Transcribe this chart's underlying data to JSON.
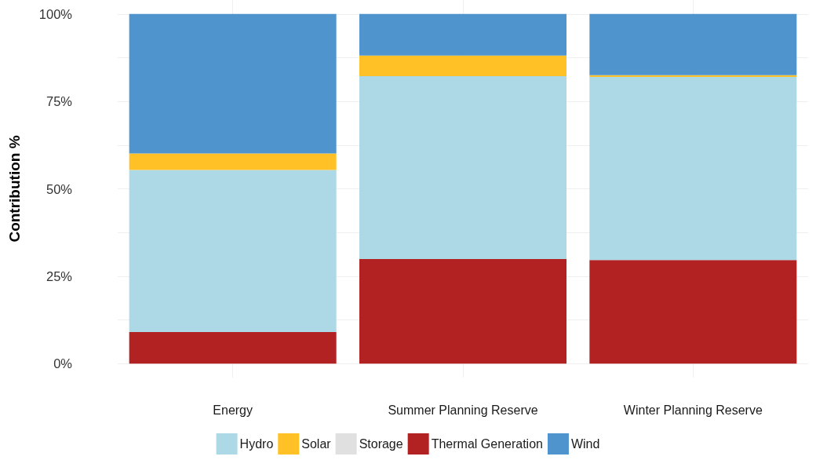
{
  "chart_data": {
    "type": "bar",
    "stacked": true,
    "ylabel": "Contribution %",
    "categories": [
      "Energy",
      "Summer Planning Reserve",
      "Winter Planning Reserve"
    ],
    "series": [
      {
        "name": "Thermal Generation",
        "color": "#b22222",
        "values": [
          9.0,
          29.9,
          29.6
        ]
      },
      {
        "name": "Hydro",
        "color": "#add8e6",
        "values": [
          46.4,
          52.3,
          52.4
        ]
      },
      {
        "name": "Solar",
        "color": "#ffc125",
        "values": [
          4.7,
          5.9,
          0.5
        ]
      },
      {
        "name": "Storage",
        "color": "#e0e0e0",
        "values": [
          0,
          0,
          0
        ]
      },
      {
        "name": "Wind",
        "color": "#4f94cd",
        "values": [
          39.9,
          11.9,
          17.5
        ]
      }
    ],
    "ylim": [
      -4,
      104
    ],
    "yticks": [
      {
        "value": 0,
        "label": "0%"
      },
      {
        "value": 12.5,
        "label": null
      },
      {
        "value": 25,
        "label": "25%"
      },
      {
        "value": 37.5,
        "label": null
      },
      {
        "value": 50,
        "label": "50%"
      },
      {
        "value": 62.5,
        "label": null
      },
      {
        "value": 75,
        "label": "75%"
      },
      {
        "value": 87.5,
        "label": null
      },
      {
        "value": 100,
        "label": "100%"
      }
    ],
    "grid": true,
    "legend": "bottom"
  }
}
